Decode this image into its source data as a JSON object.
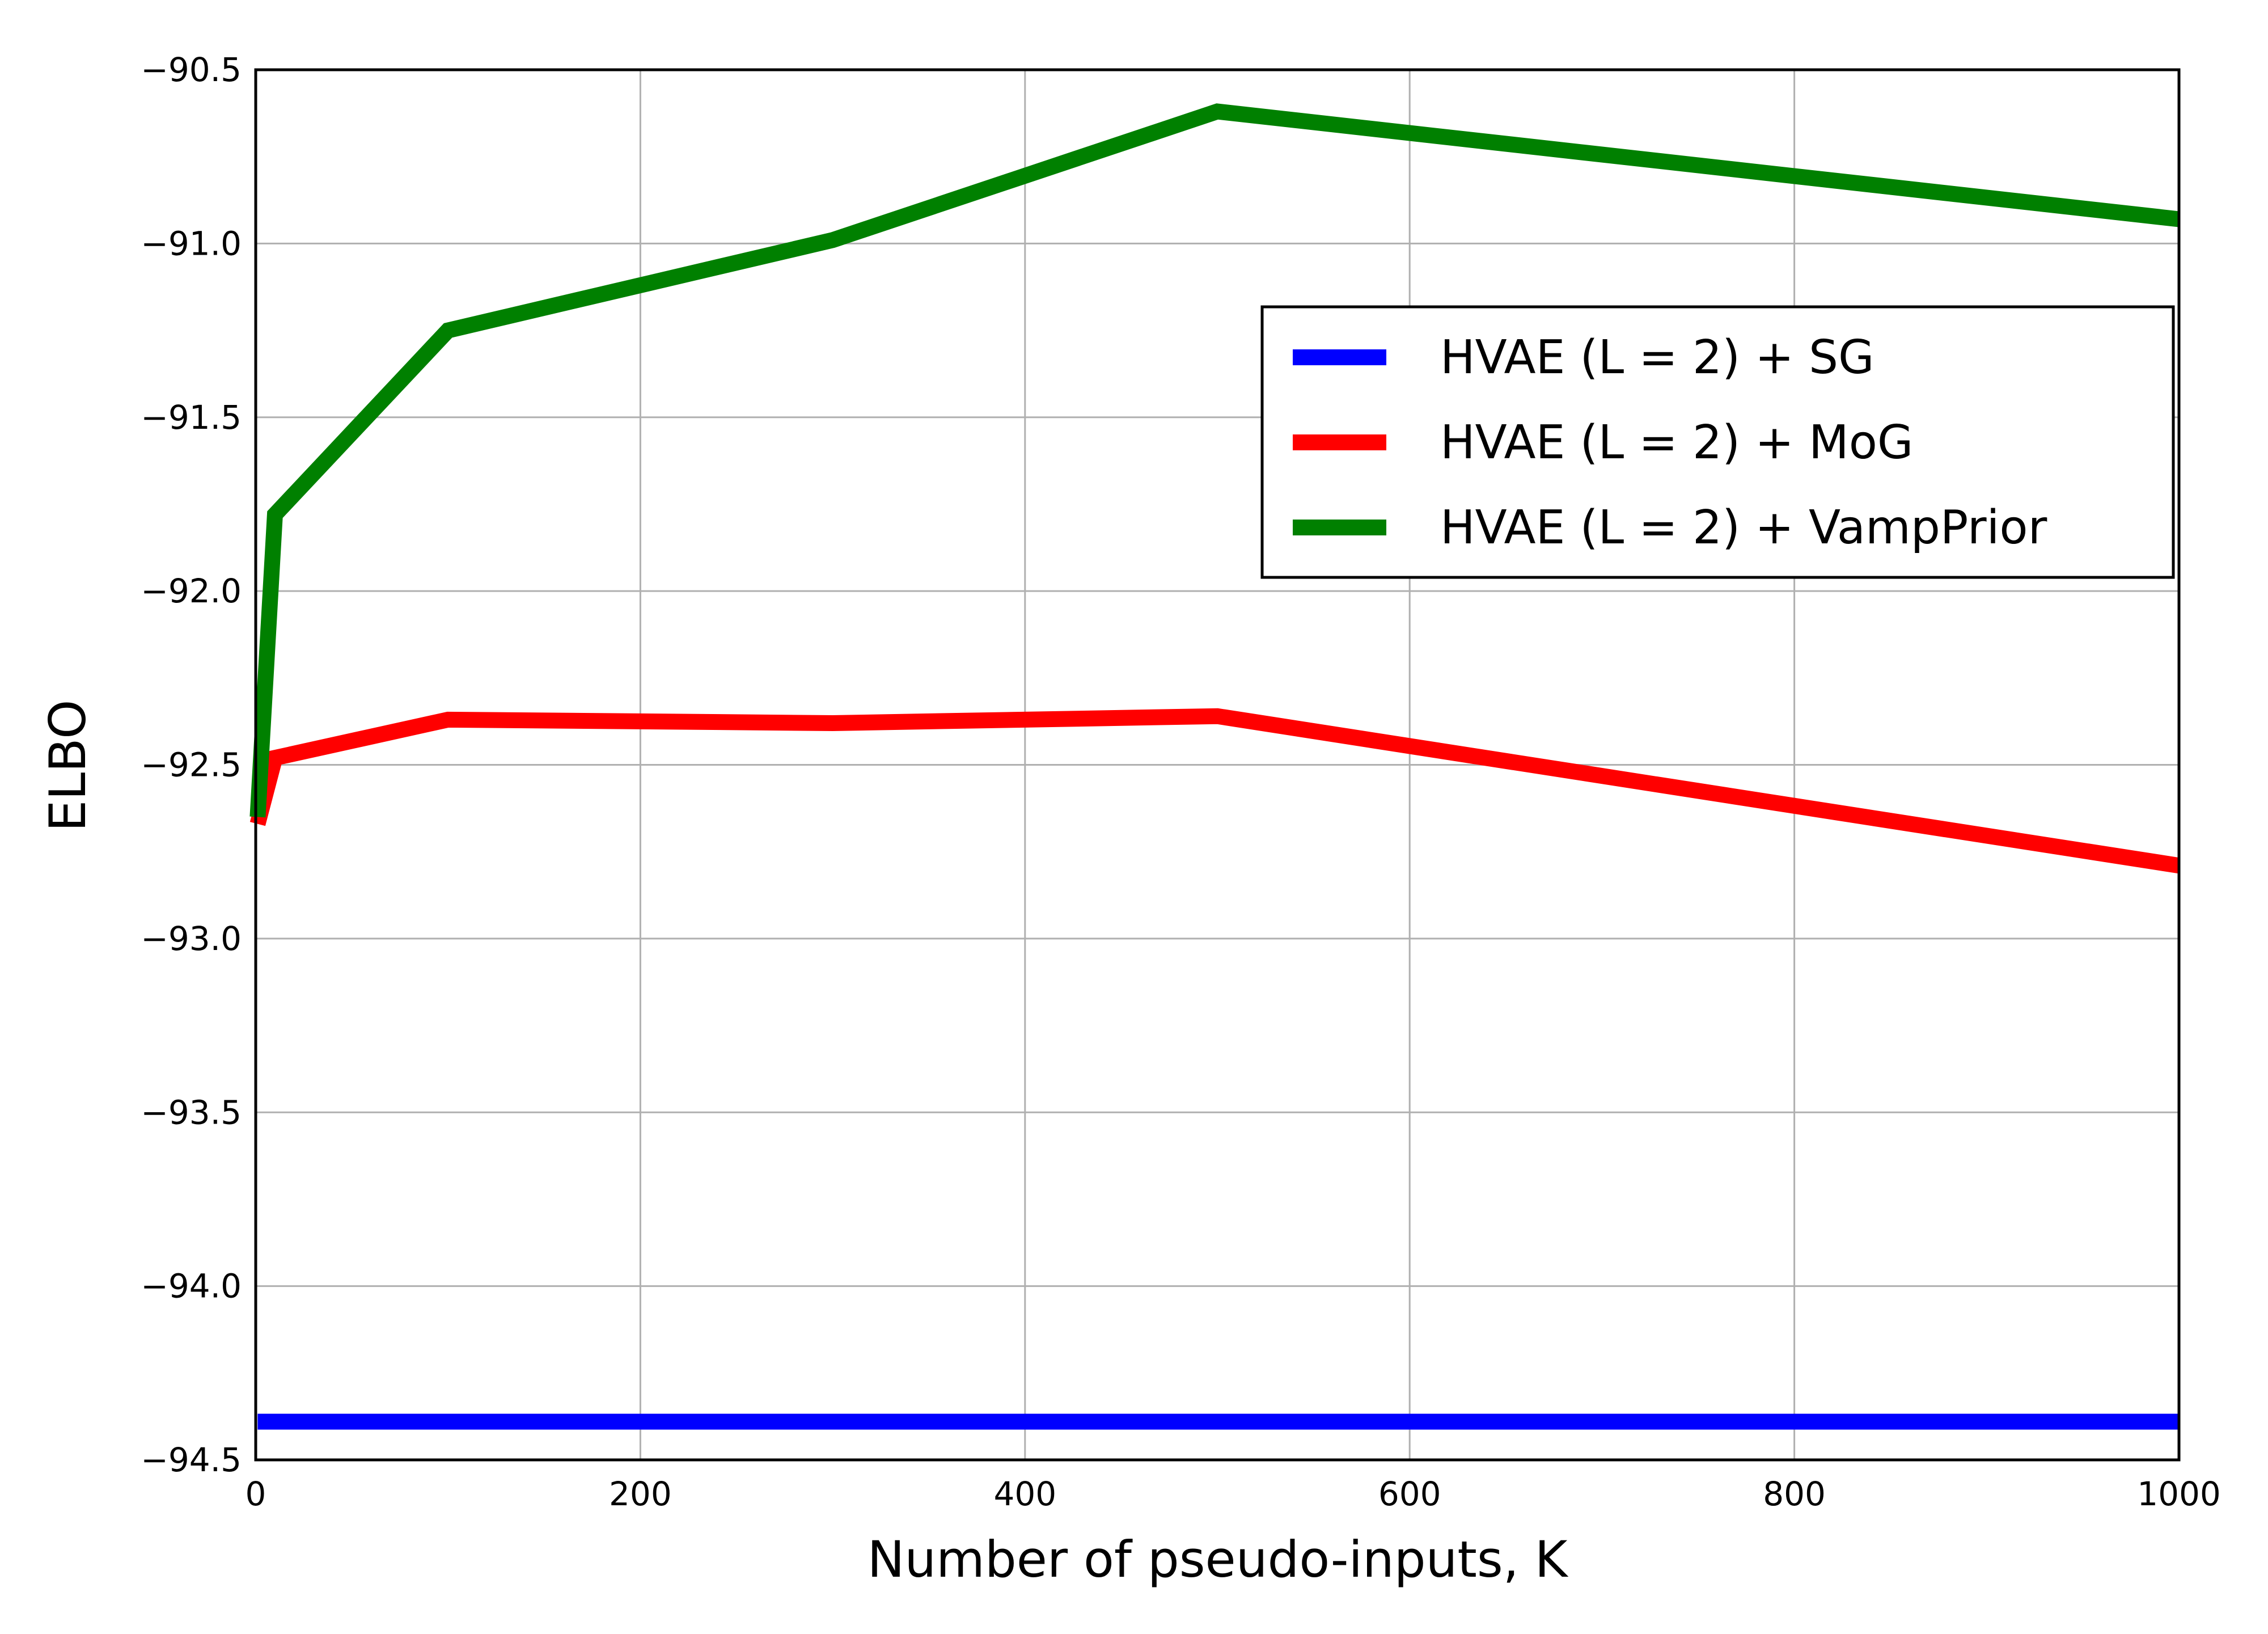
{
  "chart_data": {
    "type": "line",
    "title": "",
    "xlabel": "Number of pseudo-inputs, K",
    "ylabel": "ELBO",
    "xlim": [
      0,
      1000
    ],
    "ylim": [
      -94.5,
      -90.5
    ],
    "xticks": [
      "0",
      "200",
      "400",
      "600",
      "800",
      "1000"
    ],
    "yticks": [
      "−90.5",
      "−91.0",
      "−91.5",
      "−92.0",
      "−92.5",
      "−93.0",
      "−93.5",
      "−94.0",
      "−94.5"
    ],
    "grid": true,
    "legend_position": "upper-right",
    "series": [
      {
        "name": "HVAE (L = 2) + SG",
        "color": "#0000ff",
        "x": [
          1,
          10,
          100,
          300,
          500,
          1000
        ],
        "y": [
          -94.39,
          -94.39,
          -94.39,
          -94.39,
          -94.39,
          -94.39
        ]
      },
      {
        "name": "HVAE (L = 2) + MoG",
        "color": "#ff0000",
        "x": [
          1,
          10,
          100,
          300,
          500,
          1000
        ],
        "y": [
          -92.67,
          -92.48,
          -92.37,
          -92.38,
          -92.36,
          -92.79
        ]
      },
      {
        "name": "HVAE (L = 2) + VampPrior",
        "color": "#008000",
        "x": [
          1,
          10,
          100,
          300,
          500,
          1000
        ],
        "y": [
          -92.65,
          -91.78,
          -91.25,
          -90.99,
          -90.62,
          -90.93
        ]
      }
    ]
  }
}
